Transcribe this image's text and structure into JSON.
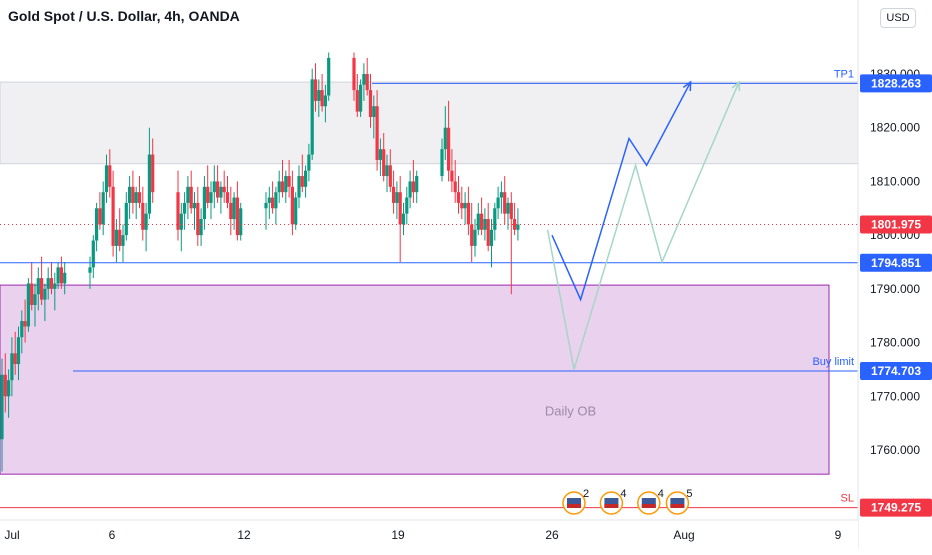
{
  "title": "Gold Spot / U.S. Dollar, 4h, OANDA",
  "currency_button": "USD",
  "chart_data": {
    "type": "candlestick",
    "title": "Gold Spot / U.S. Dollar, 4h, OANDA",
    "ylim": [
      1745,
      1842
    ],
    "y_ticks": [
      "1830.000",
      "1820.000",
      "1810.000",
      "1800.000",
      "1790.000",
      "1780.000",
      "1770.000",
      "1760.000"
    ],
    "y_tick_values": [
      1830,
      1820,
      1810,
      1800,
      1790,
      1780,
      1770,
      1760
    ],
    "x_ticks": [
      "Jul",
      "6",
      "12",
      "19",
      "26",
      "Aug",
      "9"
    ],
    "x_tick_days": [
      1,
      6,
      12,
      19,
      26,
      32,
      39
    ],
    "levels": [
      {
        "name": "TP1",
        "value": 1828.263,
        "label": "1828.263",
        "color": "#2962ff"
      },
      {
        "name": "",
        "value": 1801.975,
        "label": "1801.975",
        "color": "#f23645"
      },
      {
        "name": "",
        "value": 1794.851,
        "label": "1794.851",
        "color": "#2962ff"
      },
      {
        "name": "Buy limit",
        "value": 1774.703,
        "label": "1774.703",
        "color": "#2962ff"
      },
      {
        "name": "SL",
        "value": 1749.275,
        "label": "1749.275",
        "color": "#f23645"
      }
    ],
    "zones": [
      {
        "label": "",
        "top": 1828.5,
        "bottom": 1813.3,
        "color": "#f0f0f3"
      },
      {
        "label": "Daily OB",
        "top": 1790.7,
        "bottom": 1755.5,
        "color": "#e1bee7"
      }
    ],
    "ohlc_day_open_high_low_close": [
      [
        1.0,
        1762,
        1777,
        1756,
        1774
      ],
      [
        1.15,
        1774,
        1778,
        1767,
        1770
      ],
      [
        1.3,
        1770,
        1775,
        1766,
        1773
      ],
      [
        1.45,
        1773,
        1781,
        1770,
        1778
      ],
      [
        1.6,
        1778,
        1782,
        1774,
        1776
      ],
      [
        1.75,
        1776,
        1783,
        1773,
        1781
      ],
      [
        1.9,
        1781,
        1786,
        1778,
        1784
      ],
      [
        2.05,
        1784,
        1788,
        1780,
        1783
      ],
      [
        2.2,
        1783,
        1792,
        1782,
        1791
      ],
      [
        2.35,
        1791,
        1795,
        1786,
        1787
      ],
      [
        2.5,
        1787,
        1791,
        1783,
        1789
      ],
      [
        2.65,
        1789,
        1794,
        1786,
        1792
      ],
      [
        2.8,
        1792,
        1796,
        1787,
        1788
      ],
      [
        2.95,
        1788,
        1791,
        1784,
        1790
      ],
      [
        3.1,
        1790,
        1794,
        1788,
        1792
      ],
      [
        3.25,
        1792,
        1795,
        1789,
        1790
      ],
      [
        3.4,
        1790,
        1793,
        1786,
        1791
      ],
      [
        3.55,
        1791,
        1795,
        1790,
        1794
      ],
      [
        3.7,
        1794,
        1796,
        1790,
        1791
      ],
      [
        3.85,
        1791,
        1795,
        1789,
        1793
      ],
      [
        5.0,
        1793,
        1796,
        1790,
        1794
      ],
      [
        5.15,
        1794,
        1800,
        1792,
        1799
      ],
      [
        5.3,
        1799,
        1806,
        1797,
        1805
      ],
      [
        5.45,
        1805,
        1808,
        1801,
        1802
      ],
      [
        5.6,
        1802,
        1810,
        1800,
        1808
      ],
      [
        5.75,
        1808,
        1815,
        1806,
        1813
      ],
      [
        5.9,
        1813,
        1816,
        1807,
        1809
      ],
      [
        6.05,
        1809,
        1812,
        1796,
        1798
      ],
      [
        6.2,
        1798,
        1803,
        1795,
        1801
      ],
      [
        6.35,
        1801,
        1805,
        1797,
        1798
      ],
      [
        6.5,
        1798,
        1802,
        1795,
        1800
      ],
      [
        6.65,
        1800,
        1808,
        1799,
        1806
      ],
      [
        6.8,
        1806,
        1811,
        1803,
        1809
      ],
      [
        6.95,
        1809,
        1812,
        1804,
        1806
      ],
      [
        7.1,
        1806,
        1809,
        1803,
        1808
      ],
      [
        7.25,
        1808,
        1811,
        1805,
        1806
      ],
      [
        7.4,
        1806,
        1809,
        1799,
        1801
      ],
      [
        7.55,
        1801,
        1806,
        1797,
        1804
      ],
      [
        7.7,
        1804,
        1820,
        1803,
        1815
      ],
      [
        7.85,
        1815,
        1818,
        1806,
        1808
      ],
      [
        9.0,
        1808,
        1812,
        1799,
        1801
      ],
      [
        9.15,
        1801,
        1806,
        1797,
        1804
      ],
      [
        9.3,
        1804,
        1808,
        1801,
        1806
      ],
      [
        9.45,
        1806,
        1811,
        1803,
        1809
      ],
      [
        9.6,
        1809,
        1812,
        1804,
        1805
      ],
      [
        9.75,
        1805,
        1808,
        1801,
        1806
      ],
      [
        9.9,
        1806,
        1809,
        1798,
        1800
      ],
      [
        10.05,
        1800,
        1805,
        1798,
        1803
      ],
      [
        10.2,
        1803,
        1811,
        1801,
        1809
      ],
      [
        10.35,
        1809,
        1813,
        1805,
        1806
      ],
      [
        10.5,
        1806,
        1810,
        1803,
        1808
      ],
      [
        10.65,
        1808,
        1813,
        1805,
        1810
      ],
      [
        10.8,
        1810,
        1813,
        1806,
        1807
      ],
      [
        10.95,
        1807,
        1810,
        1804,
        1809
      ],
      [
        11.1,
        1809,
        1812,
        1806,
        1808
      ],
      [
        11.25,
        1808,
        1811,
        1805,
        1806
      ],
      [
        11.4,
        1806,
        1809,
        1800,
        1803
      ],
      [
        11.55,
        1803,
        1808,
        1801,
        1807
      ],
      [
        11.7,
        1807,
        1810,
        1799,
        1800
      ],
      [
        11.85,
        1800,
        1806,
        1799,
        1805
      ],
      [
        13.0,
        1805,
        1808,
        1801,
        1806
      ],
      [
        13.15,
        1806,
        1809,
        1803,
        1807
      ],
      [
        13.3,
        1807,
        1810,
        1804,
        1805
      ],
      [
        13.45,
        1805,
        1809,
        1802,
        1808
      ],
      [
        13.6,
        1808,
        1812,
        1806,
        1810
      ],
      [
        13.75,
        1810,
        1814,
        1807,
        1808
      ],
      [
        13.9,
        1808,
        1812,
        1806,
        1811
      ],
      [
        14.05,
        1811,
        1814,
        1807,
        1809
      ],
      [
        14.2,
        1809,
        1812,
        1800,
        1802
      ],
      [
        14.35,
        1802,
        1808,
        1801,
        1807
      ],
      [
        14.5,
        1807,
        1813,
        1805,
        1811
      ],
      [
        14.65,
        1811,
        1815,
        1808,
        1809
      ],
      [
        14.8,
        1809,
        1813,
        1807,
        1812
      ],
      [
        14.95,
        1812,
        1817,
        1810,
        1815
      ],
      [
        15.1,
        1815,
        1831,
        1814,
        1829
      ],
      [
        15.25,
        1829,
        1832,
        1823,
        1825
      ],
      [
        15.4,
        1825,
        1829,
        1822,
        1827
      ],
      [
        15.55,
        1827,
        1830,
        1823,
        1824
      ],
      [
        15.7,
        1824,
        1828,
        1821,
        1826
      ],
      [
        15.85,
        1826,
        1834,
        1825,
        1833
      ],
      [
        17.0,
        1833,
        1834,
        1825,
        1827
      ],
      [
        17.15,
        1827,
        1830,
        1822,
        1823
      ],
      [
        17.3,
        1823,
        1829,
        1822,
        1828
      ],
      [
        17.45,
        1828,
        1832,
        1825,
        1830
      ],
      [
        17.6,
        1830,
        1833,
        1826,
        1827
      ],
      [
        17.75,
        1827,
        1830,
        1820,
        1822
      ],
      [
        17.9,
        1822,
        1826,
        1818,
        1824
      ],
      [
        18.05,
        1824,
        1827,
        1812,
        1814
      ],
      [
        18.2,
        1814,
        1818,
        1811,
        1816
      ],
      [
        18.35,
        1816,
        1819,
        1810,
        1811
      ],
      [
        18.5,
        1811,
        1815,
        1808,
        1813
      ],
      [
        18.65,
        1813,
        1816,
        1808,
        1809
      ],
      [
        18.8,
        1809,
        1812,
        1804,
        1806
      ],
      [
        18.95,
        1806,
        1810,
        1803,
        1808
      ],
      [
        19.1,
        1808,
        1811,
        1795,
        1802
      ],
      [
        19.25,
        1802,
        1806,
        1800,
        1804
      ],
      [
        19.4,
        1804,
        1809,
        1802,
        1807
      ],
      [
        19.55,
        1807,
        1812,
        1805,
        1810
      ],
      [
        19.7,
        1810,
        1814,
        1806,
        1808
      ],
      [
        19.85,
        1808,
        1812,
        1806,
        1811
      ],
      [
        21.0,
        1811,
        1818,
        1810,
        1816
      ],
      [
        21.15,
        1816,
        1824,
        1814,
        1820
      ],
      [
        21.3,
        1820,
        1825,
        1810,
        1812
      ],
      [
        21.45,
        1812,
        1816,
        1808,
        1810
      ],
      [
        21.6,
        1810,
        1814,
        1806,
        1808
      ],
      [
        21.75,
        1808,
        1811,
        1804,
        1806
      ],
      [
        21.9,
        1806,
        1809,
        1803,
        1805
      ],
      [
        22.05,
        1805,
        1808,
        1802,
        1806
      ],
      [
        22.2,
        1806,
        1809,
        1800,
        1802
      ],
      [
        22.35,
        1802,
        1806,
        1795,
        1798
      ],
      [
        22.5,
        1798,
        1803,
        1796,
        1801
      ],
      [
        22.65,
        1801,
        1806,
        1800,
        1804
      ],
      [
        22.8,
        1804,
        1807,
        1800,
        1801
      ],
      [
        22.95,
        1801,
        1805,
        1799,
        1803
      ],
      [
        23.1,
        1803,
        1806,
        1797,
        1798
      ],
      [
        23.25,
        1798,
        1803,
        1794,
        1801
      ],
      [
        23.4,
        1801,
        1806,
        1799,
        1805
      ],
      [
        23.55,
        1805,
        1809,
        1803,
        1807
      ],
      [
        23.7,
        1807,
        1810,
        1804,
        1808
      ],
      [
        23.85,
        1808,
        1811,
        1802,
        1804
      ],
      [
        24.0,
        1804,
        1807,
        1801,
        1806
      ],
      [
        24.15,
        1806,
        1808,
        1789,
        1803
      ],
      [
        24.3,
        1803,
        1806,
        1800,
        1801
      ],
      [
        24.45,
        1801,
        1805,
        1799,
        1802
      ]
    ],
    "projection_blue_day_price": [
      [
        26.0,
        1800
      ],
      [
        27.3,
        1788
      ],
      [
        29.5,
        1818
      ],
      [
        30.3,
        1813
      ],
      [
        32.3,
        1828.5
      ]
    ],
    "projection_green_day_price": [
      [
        25.8,
        1801
      ],
      [
        27.0,
        1775
      ],
      [
        29.8,
        1813
      ],
      [
        31.0,
        1795
      ],
      [
        34.5,
        1828.5
      ]
    ],
    "events": [
      {
        "label": "2",
        "day": 27.0
      },
      {
        "label": "4",
        "day": 28.7
      },
      {
        "label": "4",
        "day": 30.4
      },
      {
        "label": "5",
        "day": 31.7
      }
    ]
  }
}
